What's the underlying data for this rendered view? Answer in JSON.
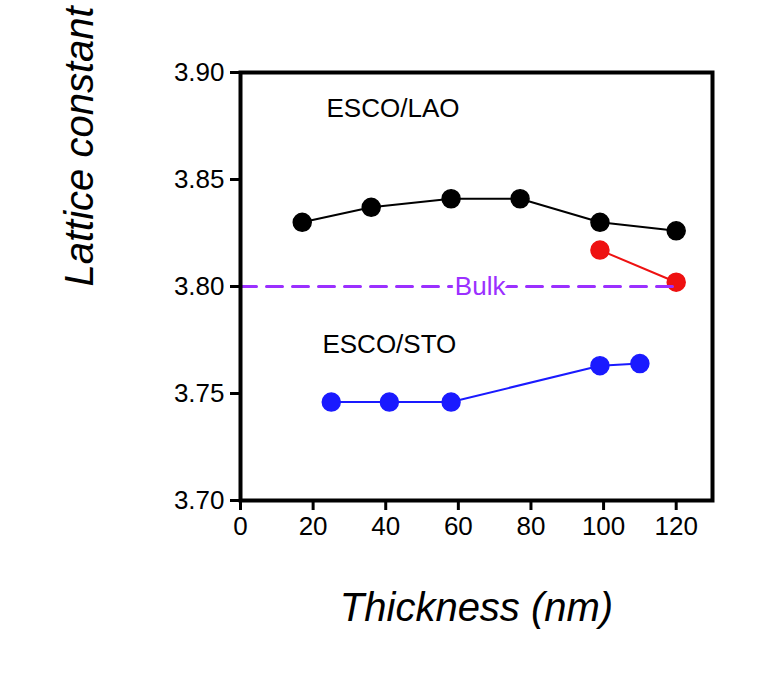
{
  "chart_data": {
    "type": "line",
    "xlabel": "Thickness (nm)",
    "ylabel": "Lattice constant (Å)",
    "xlim": [
      0,
      130
    ],
    "ylim": [
      3.7,
      3.9
    ],
    "xticks": [
      0,
      20,
      40,
      60,
      80,
      100,
      120
    ],
    "yticks": [
      {
        "value": 3.7,
        "label": "3.70"
      },
      3.75,
      {
        "value": 3.8,
        "label": "3.80"
      },
      3.85,
      {
        "value": 3.9,
        "label": "3.90"
      }
    ],
    "grid": false,
    "series": [
      {
        "color": "#000000",
        "marker": "circle",
        "line_style": "solid",
        "x": [
          17,
          36,
          58,
          77,
          99,
          120
        ],
        "values": [
          3.83,
          3.837,
          3.841,
          3.841,
          3.83,
          3.826
        ]
      },
      {
        "color": "#ee1111",
        "marker": "circle",
        "line_style": "solid",
        "x": [
          99,
          120
        ],
        "values": [
          3.817,
          3.802
        ]
      },
      {
        "color": "#1a1aff",
        "marker": "circle",
        "line_style": "solid",
        "x": [
          25,
          41,
          58,
          99,
          110
        ],
        "values": [
          3.746,
          3.746,
          3.746,
          3.763,
          3.764
        ]
      },
      {
        "color": "#9b30ff",
        "marker": "none",
        "line_style": "dashed",
        "x": [
          0,
          120
        ],
        "values": [
          3.8,
          3.8
        ]
      }
    ],
    "annotations": [
      {
        "text": "ESCO/LAO",
        "x": 42,
        "y": 3.883,
        "color": "#000000"
      },
      {
        "text": "ESCO/STO",
        "x": 41,
        "y": 3.773,
        "color": "#000000"
      },
      {
        "text": "Bulk",
        "x": 66,
        "y": 3.8,
        "color": "#9b30ff"
      }
    ]
  }
}
